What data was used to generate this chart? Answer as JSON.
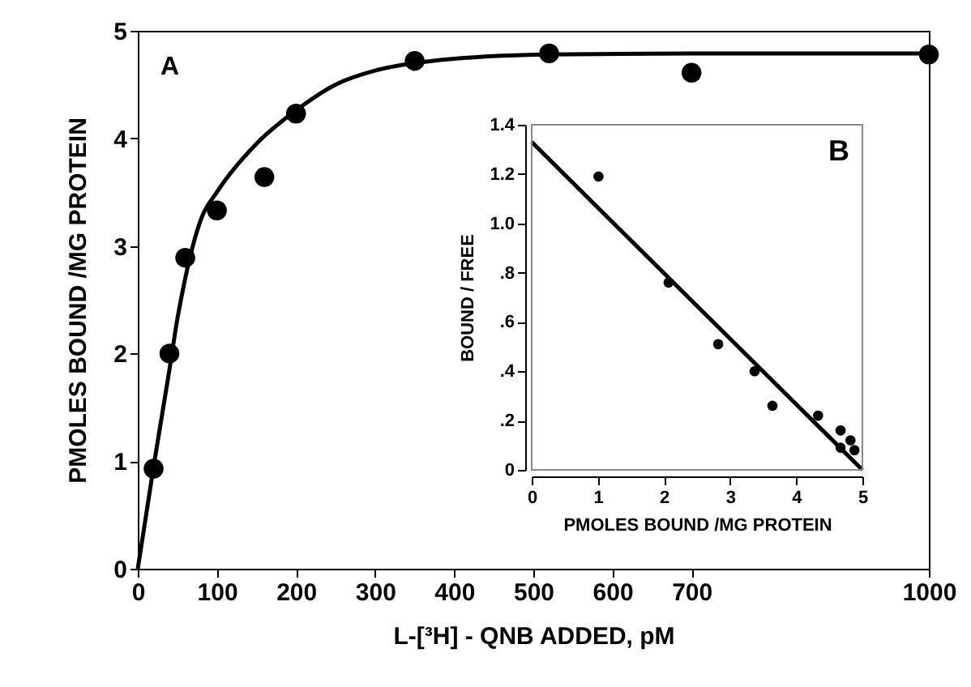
{
  "chart_data": [
    {
      "type": "scatter",
      "xlabel": "L-[³H] - QNB ADDED, pM",
      "ylabel": "PMOLES BOUND /MG PROTEIN",
      "annotations": [
        "A"
      ],
      "xlim": [
        0,
        1000
      ],
      "ylim": [
        0,
        5
      ],
      "xticks": [
        0,
        100,
        200,
        300,
        400,
        500,
        600,
        700,
        1000
      ],
      "yticks": [
        0,
        1,
        2,
        3,
        4,
        5
      ],
      "grid": false,
      "series": [
        {
          "color": "#000000",
          "marker": "circle",
          "x": [
            20,
            40,
            60,
            100,
            160,
            200,
            350,
            520,
            700,
            1000
          ],
          "values": [
            0.93,
            2.0,
            2.89,
            3.33,
            3.64,
            4.23,
            4.72,
            4.79,
            4.61,
            4.78
          ]
        },
        {
          "type": "line",
          "color": "#000000",
          "marker": "none",
          "line_style": "solid",
          "x": [
            0,
            20,
            40,
            50,
            60,
            80,
            100,
            150,
            200,
            250,
            300,
            350,
            400,
            520,
            700,
            1000
          ],
          "values": [
            0,
            0.95,
            1.85,
            2.32,
            2.7,
            3.25,
            3.5,
            3.95,
            4.26,
            4.5,
            4.63,
            4.7,
            4.74,
            4.78,
            4.79,
            4.79
          ]
        }
      ]
    },
    {
      "type": "scatter",
      "xlabel": "PMOLES BOUND /MG PROTEIN",
      "ylabel": "BOUND / FREE",
      "annotations": [
        "B"
      ],
      "xlim": [
        0,
        5
      ],
      "ylim": [
        0,
        1.4
      ],
      "xticks": [
        0,
        1,
        2,
        3,
        4,
        5
      ],
      "yticks": [
        0,
        {
          "value": 0.2,
          "label": ".2"
        },
        {
          "value": 0.4,
          "label": ".4"
        },
        {
          "value": 0.6,
          "label": ".6"
        },
        {
          "value": 0.8,
          "label": ".8"
        },
        {
          "value": 1,
          "label": "1.0"
        },
        {
          "value": 1.2,
          "label": "1.2"
        },
        {
          "value": 1.4,
          "label": "1.4"
        }
      ],
      "grid": false,
      "series": [
        {
          "color": "#000000",
          "marker": "circle",
          "x": [
            1.01,
            2.07,
            2.82,
            3.37,
            3.64,
            4.33,
            4.67,
            4.67,
            4.82,
            4.88
          ],
          "values": [
            1.19,
            0.76,
            0.51,
            0.4,
            0.26,
            0.22,
            0.16,
            0.09,
            0.12,
            0.08
          ]
        },
        {
          "type": "line",
          "color": "#000000",
          "marker": "none",
          "line_style": "solid",
          "x": [
            0,
            5
          ],
          "values": [
            1.33,
            0
          ]
        }
      ]
    }
  ]
}
